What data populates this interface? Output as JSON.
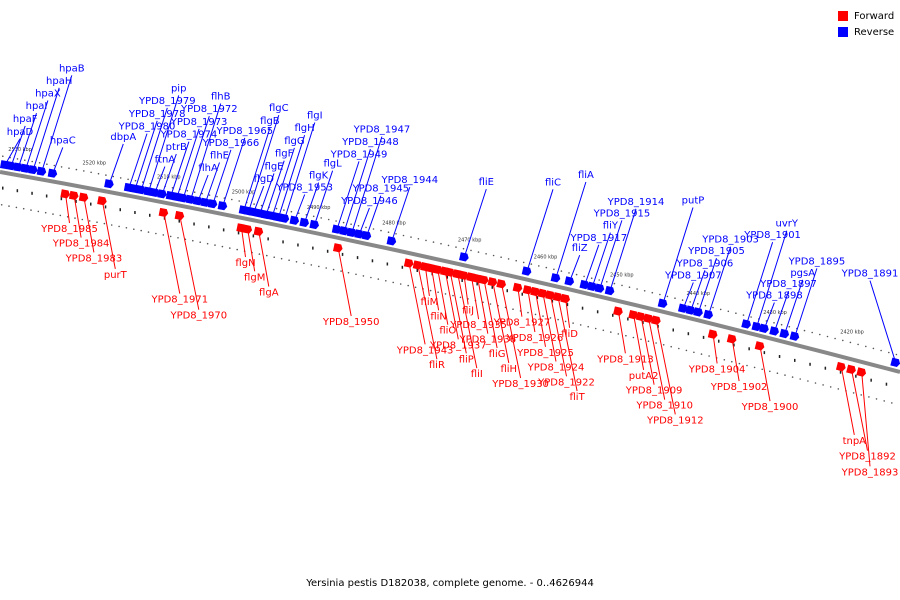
{
  "legend": {
    "forward_label": "Forward",
    "reverse_label": "Reverse",
    "forward_color": "#ff0000",
    "reverse_color": "#0000ff"
  },
  "caption": "Yersinia pestis D182038, complete genome. - 0..4626944",
  "ticks": [
    "2530 kbp",
    "2520 kbp",
    "2510 kbp",
    "2500 kbp",
    "2490 kbp",
    "2480 kbp",
    "2470 kbp",
    "2460 kbp",
    "2450 kbp",
    "2440 kbp",
    "2430 kbp",
    "2420 kbp"
  ],
  "reverse_genes": [
    {
      "name": "hpaD",
      "pos": 3
    },
    {
      "name": "hpaF",
      "pos": 8
    },
    {
      "name": "hpaI",
      "pos": 14
    },
    {
      "name": "hpaX",
      "pos": 20
    },
    {
      "name": "hpaH",
      "pos": 26
    },
    {
      "name": "hpaB",
      "pos": 33
    },
    {
      "name": "hpaC",
      "pos": 42
    },
    {
      "name": "dbpA",
      "pos": 88
    },
    {
      "name": "YPD8_1980",
      "pos": 104
    },
    {
      "name": "YPD8_1978",
      "pos": 109
    },
    {
      "name": "YPD8_1979",
      "pos": 114
    },
    {
      "name": "pip",
      "pos": 120
    },
    {
      "name": "ftnA",
      "pos": 125
    },
    {
      "name": "ptrB",
      "pos": 131
    },
    {
      "name": "YPD8_1974",
      "pos": 138
    },
    {
      "name": "YPD8_1973",
      "pos": 143
    },
    {
      "name": "YPD8_1972",
      "pos": 148
    },
    {
      "name": "flhB",
      "pos": 154
    },
    {
      "name": "flhA",
      "pos": 160
    },
    {
      "name": "flhE",
      "pos": 166
    },
    {
      "name": "YPD8_1966",
      "pos": 172
    },
    {
      "name": "YPD8_1965",
      "pos": 180
    },
    {
      "name": "flgB",
      "pos": 197
    },
    {
      "name": "flgC",
      "pos": 201
    },
    {
      "name": "flgD",
      "pos": 205
    },
    {
      "name": "flgE",
      "pos": 210
    },
    {
      "name": "flgF",
      "pos": 215
    },
    {
      "name": "flgG",
      "pos": 220
    },
    {
      "name": "flgH",
      "pos": 225
    },
    {
      "name": "flgI",
      "pos": 230
    },
    {
      "name": "YPD8_1953",
      "pos": 238
    },
    {
      "name": "flgK",
      "pos": 246
    },
    {
      "name": "flgL",
      "pos": 254
    },
    {
      "name": "YPD8_1949",
      "pos": 272
    },
    {
      "name": "YPD8_1948",
      "pos": 278
    },
    {
      "name": "YPD8_1947",
      "pos": 284
    },
    {
      "name": "YPD8_1946",
      "pos": 290
    },
    {
      "name": "YPD8_1945",
      "pos": 296
    },
    {
      "name": "YPD8_1944",
      "pos": 316
    },
    {
      "name": "fliE",
      "pos": 374
    },
    {
      "name": "fliC",
      "pos": 424
    },
    {
      "name": "fliA",
      "pos": 447
    },
    {
      "name": "fliZ",
      "pos": 458
    },
    {
      "name": "YPD8_1917",
      "pos": 470
    },
    {
      "name": "fliY",
      "pos": 476
    },
    {
      "name": "YPD8_1915",
      "pos": 482
    },
    {
      "name": "YPD8_1914",
      "pos": 490
    },
    {
      "name": "putP",
      "pos": 532
    },
    {
      "name": "YPD8_1907",
      "pos": 548
    },
    {
      "name": "YPD8_1906",
      "pos": 554
    },
    {
      "name": "YPD8_1905",
      "pos": 560
    },
    {
      "name": "YPD8_1903",
      "pos": 568
    },
    {
      "name": "YPD8_1901",
      "pos": 598
    },
    {
      "name": "uvrY",
      "pos": 606
    },
    {
      "name": "YPD8_1898",
      "pos": 612
    },
    {
      "name": "YPD8_1897",
      "pos": 620
    },
    {
      "name": "pgsA",
      "pos": 628
    },
    {
      "name": "YPD8_1895",
      "pos": 636
    },
    {
      "name": "YPD8_1891",
      "pos": 715
    }
  ],
  "forward_genes": [
    {
      "name": "YPD8_1985",
      "pos": 55
    },
    {
      "name": "YPD8_1984",
      "pos": 62
    },
    {
      "name": "YPD8_1983",
      "pos": 70
    },
    {
      "name": "purT",
      "pos": 85
    },
    {
      "name": "YPD8_1971",
      "pos": 135
    },
    {
      "name": "YPD8_1970",
      "pos": 148
    },
    {
      "name": "flgN",
      "pos": 198
    },
    {
      "name": "flgM",
      "pos": 203
    },
    {
      "name": "flgA",
      "pos": 212
    },
    {
      "name": "YPD8_1950",
      "pos": 276
    },
    {
      "name": "YPD8_1943",
      "pos": 333
    },
    {
      "name": "fliR",
      "pos": 340
    },
    {
      "name": "fliM",
      "pos": 346
    },
    {
      "name": "fliN",
      "pos": 351
    },
    {
      "name": "fliO",
      "pos": 356
    },
    {
      "name": "YPD8_1937",
      "pos": 362
    },
    {
      "name": "fliP",
      "pos": 366
    },
    {
      "name": "fliI",
      "pos": 372
    },
    {
      "name": "fliJ",
      "pos": 377
    },
    {
      "name": "YPD8_1935",
      "pos": 383
    },
    {
      "name": "YPD8_1936",
      "pos": 388
    },
    {
      "name": "fliG",
      "pos": 393
    },
    {
      "name": "fliH",
      "pos": 400
    },
    {
      "name": "YPD8_1930",
      "pos": 407
    },
    {
      "name": "YPD8_1927",
      "pos": 420
    },
    {
      "name": "YPD8_1926",
      "pos": 428
    },
    {
      "name": "YPD8_1925",
      "pos": 434
    },
    {
      "name": "YPD8_1924",
      "pos": 440
    },
    {
      "name": "YPD8_1922",
      "pos": 446
    },
    {
      "name": "fliT",
      "pos": 452
    },
    {
      "name": "fliD",
      "pos": 458
    },
    {
      "name": "YPD8_1913",
      "pos": 500
    },
    {
      "name": "putA2",
      "pos": 512
    },
    {
      "name": "YPD8_1909",
      "pos": 518
    },
    {
      "name": "YPD8_1910",
      "pos": 524
    },
    {
      "name": "YPD8_1912",
      "pos": 530
    },
    {
      "name": "YPD8_1904",
      "pos": 575
    },
    {
      "name": "YPD8_1902",
      "pos": 590
    },
    {
      "name": "YPD8_1900",
      "pos": 612
    },
    {
      "name": "tnpA",
      "pos": 676
    },
    {
      "name": "YPD8_1892",
      "pos": 684
    },
    {
      "name": "YPD8_1893",
      "pos": 692
    }
  ]
}
